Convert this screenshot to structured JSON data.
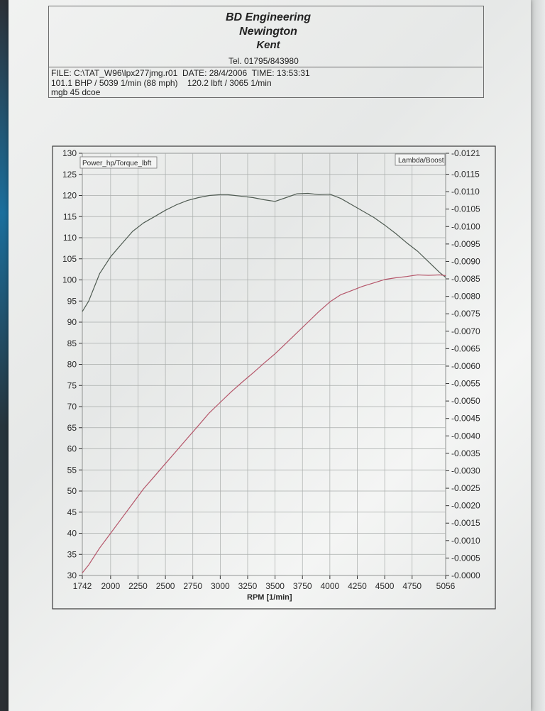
{
  "header": {
    "company_line1": "BD Engineering",
    "company_line2": "Newington",
    "company_line3": "Kent",
    "tel": "Tel. 01795/843980",
    "file_line": "FILE: C:\\TAT_W96\\lpx277jmg.r01  DATE: 28/4/2006  TIME: 13:53:31",
    "result_line": "101.1 BHP / 5039 1/min (88 mph)    120.2 lbft / 3065 1/min",
    "note_line": "mgb 45 dcoe"
  },
  "chart_data": {
    "type": "line",
    "xlabel": "RPM  [1/min]",
    "ylabel_left": "Power_hp/Torque_lbft",
    "ylabel_right": "Lambda/Boost",
    "xlim": [
      1742,
      5056
    ],
    "ylim_left": [
      30,
      130
    ],
    "ylim_right": [
      0.0,
      -0.0121
    ],
    "x_ticks": [
      "1742",
      "2000",
      "2250",
      "2500",
      "2750",
      "3000",
      "3250",
      "3500",
      "3750",
      "4000",
      "4250",
      "4500",
      "4750",
      "5056"
    ],
    "x_tick_values": [
      1742,
      2000,
      2250,
      2500,
      2750,
      3000,
      3250,
      3500,
      3750,
      4000,
      4250,
      4500,
      4750,
      5056
    ],
    "y_left_ticks": [
      "130",
      "125",
      "120",
      "115",
      "110",
      "105",
      "100",
      "95",
      "90",
      "85",
      "80",
      "75",
      "70",
      "65",
      "60",
      "55",
      "50",
      "45",
      "40",
      "35",
      "30"
    ],
    "y_left_tick_values": [
      130,
      125,
      120,
      115,
      110,
      105,
      100,
      95,
      90,
      85,
      80,
      75,
      70,
      65,
      60,
      55,
      50,
      45,
      40,
      35,
      30
    ],
    "y_right_ticks": [
      "-0.0121",
      "-0.0115",
      "-0.0110",
      "-0.0105",
      "-0.0100",
      "-0.0095",
      "-0.0090",
      "-0.0085",
      "-0.0080",
      "-0.0075",
      "-0.0070",
      "-0.0065",
      "-0.0060",
      "-0.0055",
      "-0.0050",
      "-0.0045",
      "-0.0040",
      "-0.0035",
      "-0.0030",
      "-0.0025",
      "-0.0020",
      "-0.0015",
      "-0.0010",
      "-0.0005",
      "-0.0000"
    ],
    "y_right_tick_values": [
      -0.0121,
      -0.0115,
      -0.011,
      -0.0105,
      -0.01,
      -0.0095,
      -0.009,
      -0.0085,
      -0.008,
      -0.0075,
      -0.007,
      -0.0065,
      -0.006,
      -0.0055,
      -0.005,
      -0.0045,
      -0.004,
      -0.0035,
      -0.003,
      -0.0025,
      -0.002,
      -0.0015,
      -0.001,
      -0.0005,
      0.0
    ],
    "grid": true,
    "series": [
      {
        "name": "Torque",
        "color": "#4f5b52",
        "x": [
          1742,
          1800,
          1900,
          2000,
          2100,
          2200,
          2300,
          2400,
          2500,
          2600,
          2700,
          2800,
          2900,
          3000,
          3065,
          3100,
          3200,
          3300,
          3400,
          3500,
          3600,
          3700,
          3800,
          3900,
          4000,
          4100,
          4200,
          4300,
          4400,
          4500,
          4600,
          4700,
          4800,
          4900,
          5000,
          5056
        ],
        "y": [
          92.5,
          95,
          101.5,
          105.5,
          108.5,
          111.5,
          113.5,
          115,
          116.5,
          117.8,
          118.8,
          119.5,
          120,
          120.2,
          120.2,
          120.1,
          119.8,
          119.5,
          119,
          118.6,
          119.5,
          120.4,
          120.5,
          120.2,
          120.3,
          119.3,
          117.8,
          116.3,
          114.8,
          113,
          111,
          108.8,
          106.8,
          104.3,
          101.8,
          100.6
        ]
      },
      {
        "name": "Power",
        "color": "#b5566a",
        "x": [
          1742,
          1800,
          1900,
          2000,
          2100,
          2200,
          2300,
          2400,
          2500,
          2600,
          2700,
          2800,
          2900,
          3000,
          3100,
          3200,
          3300,
          3400,
          3500,
          3600,
          3700,
          3800,
          3900,
          4000,
          4100,
          4200,
          4300,
          4400,
          4500,
          4600,
          4700,
          4800,
          4900,
          5000,
          5039,
          5056
        ],
        "y": [
          30.6,
          32.5,
          36.5,
          40,
          43.5,
          47,
          50.5,
          53.5,
          56.5,
          59.5,
          62.5,
          65.5,
          68.5,
          71,
          73.5,
          75.8,
          78,
          80.3,
          82.5,
          85,
          87.5,
          90,
          92.5,
          94.8,
          96.5,
          97.5,
          98.5,
          99.3,
          100.1,
          100.5,
          100.8,
          101.2,
          101.1,
          101.2,
          101.1,
          101
        ]
      }
    ]
  }
}
